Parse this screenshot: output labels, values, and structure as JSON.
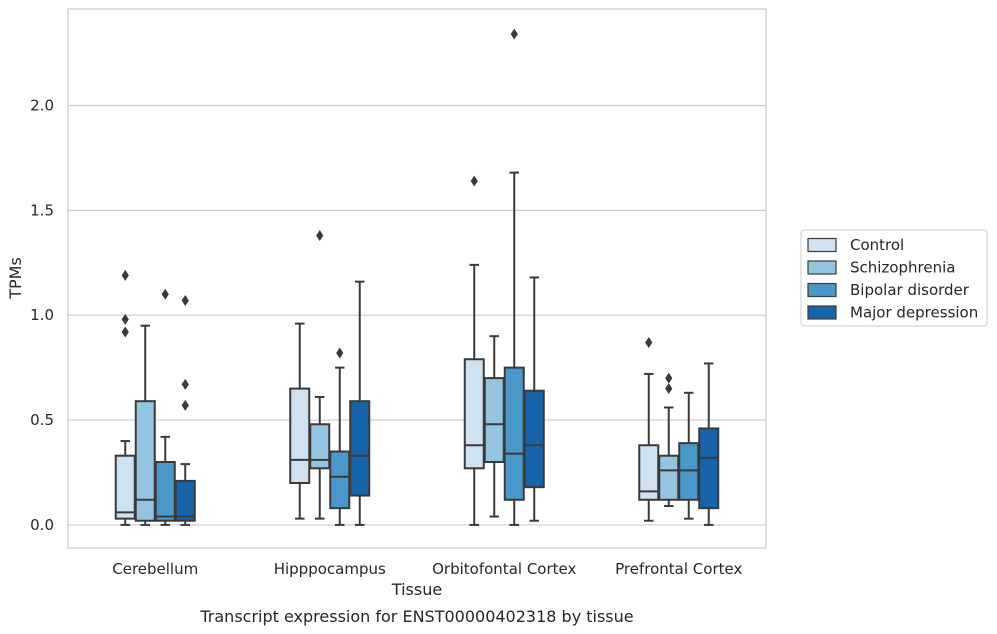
{
  "chart_data": {
    "type": "box",
    "xlabel": "Tissue",
    "ylabel": "TPMs",
    "caption": "Transcript expression for ENST00000402318 by tissue",
    "ylim": [
      -0.11,
      2.46
    ],
    "yticks": [
      0.0,
      0.5,
      1.0,
      1.5,
      2.0
    ],
    "ytick_labels": [
      "0.0",
      "0.5",
      "1.0",
      "1.5",
      "2.0"
    ],
    "grid": "horizontal",
    "legend_position": "right",
    "categories": [
      "Cerebellum",
      "Hipppocampus",
      "Orbitofontal Cortex",
      "Prefrontal Cortex"
    ],
    "series": [
      {
        "name": "Control",
        "color": "#d0e1f0",
        "boxes": [
          {
            "whisker_low": 0.0,
            "q1": 0.03,
            "median": 0.06,
            "q3": 0.33,
            "whisker_high": 0.4,
            "outliers": [
              0.92,
              0.98,
              1.19
            ]
          },
          {
            "whisker_low": 0.03,
            "q1": 0.2,
            "median": 0.31,
            "q3": 0.65,
            "whisker_high": 0.96,
            "outliers": []
          },
          {
            "whisker_low": 0.0,
            "q1": 0.27,
            "median": 0.38,
            "q3": 0.79,
            "whisker_high": 1.24,
            "outliers": [
              1.64
            ]
          },
          {
            "whisker_low": 0.02,
            "q1": 0.12,
            "median": 0.16,
            "q3": 0.38,
            "whisker_high": 0.72,
            "outliers": [
              0.87
            ]
          }
        ]
      },
      {
        "name": "Schizophrenia",
        "color": "#94c4df",
        "boxes": [
          {
            "whisker_low": 0.0,
            "q1": 0.02,
            "median": 0.12,
            "q3": 0.59,
            "whisker_high": 0.95,
            "outliers": []
          },
          {
            "whisker_low": 0.03,
            "q1": 0.27,
            "median": 0.31,
            "q3": 0.48,
            "whisker_high": 0.61,
            "outliers": [
              1.38
            ]
          },
          {
            "whisker_low": 0.04,
            "q1": 0.3,
            "median": 0.48,
            "q3": 0.7,
            "whisker_high": 0.9,
            "outliers": []
          },
          {
            "whisker_low": 0.09,
            "q1": 0.12,
            "median": 0.26,
            "q3": 0.33,
            "whisker_high": 0.56,
            "outliers": [
              0.65,
              0.7
            ]
          }
        ]
      },
      {
        "name": "Bipolar disorder",
        "color": "#4a98c9",
        "boxes": [
          {
            "whisker_low": 0.0,
            "q1": 0.02,
            "median": 0.04,
            "q3": 0.3,
            "whisker_high": 0.42,
            "outliers": [
              1.1
            ]
          },
          {
            "whisker_low": 0.0,
            "q1": 0.08,
            "median": 0.23,
            "q3": 0.35,
            "whisker_high": 0.75,
            "outliers": [
              0.82
            ]
          },
          {
            "whisker_low": 0.0,
            "q1": 0.12,
            "median": 0.34,
            "q3": 0.75,
            "whisker_high": 1.68,
            "outliers": [
              2.34
            ]
          },
          {
            "whisker_low": 0.03,
            "q1": 0.12,
            "median": 0.26,
            "q3": 0.39,
            "whisker_high": 0.63,
            "outliers": []
          }
        ]
      },
      {
        "name": "Major depression",
        "color": "#1764ab",
        "boxes": [
          {
            "whisker_low": 0.0,
            "q1": 0.02,
            "median": 0.04,
            "q3": 0.21,
            "whisker_high": 0.29,
            "outliers": [
              0.57,
              0.67,
              1.07
            ]
          },
          {
            "whisker_low": 0.0,
            "q1": 0.14,
            "median": 0.33,
            "q3": 0.59,
            "whisker_high": 1.16,
            "outliers": []
          },
          {
            "whisker_low": 0.02,
            "q1": 0.18,
            "median": 0.38,
            "q3": 0.64,
            "whisker_high": 1.18,
            "outliers": []
          },
          {
            "whisker_low": 0.0,
            "q1": 0.08,
            "median": 0.32,
            "q3": 0.46,
            "whisker_high": 0.77,
            "outliers": []
          }
        ]
      }
    ]
  }
}
